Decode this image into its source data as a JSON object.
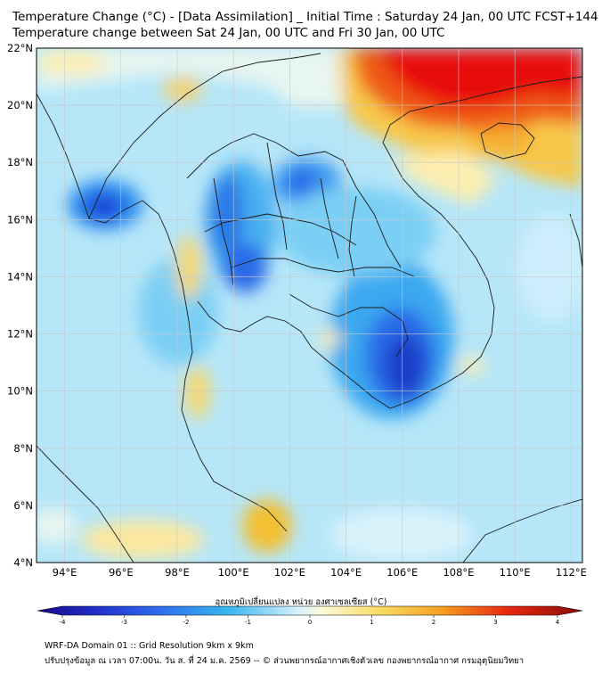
{
  "header": {
    "title_line1": "Temperature Change (°C) - [Data Assimilation] _ Initial Time : Saturday 24 Jan, 00 UTC FCST+144",
    "title_line2": "Temperature change between Sat 24 Jan, 00 UTC and Fri 30 Jan, 00 UTC"
  },
  "map": {
    "lat_labels": [
      "22°N",
      "20°N",
      "18°N",
      "16°N",
      "14°N",
      "12°N",
      "10°N",
      "8°N",
      "6°N",
      "4°N"
    ],
    "lat_values": [
      22,
      20,
      18,
      16,
      14,
      12,
      10,
      8,
      6,
      4
    ],
    "lon_labels": [
      "94°E",
      "96°E",
      "98°E",
      "100°E",
      "102°E",
      "104°E",
      "106°E",
      "108°E",
      "110°E",
      "112°E"
    ],
    "lon_values": [
      94,
      96,
      98,
      100,
      102,
      104,
      106,
      108,
      110,
      112
    ],
    "lat_range": [
      4,
      22
    ],
    "lon_range": [
      93,
      112.4
    ],
    "variable": "Temperature change",
    "unit": "°C"
  },
  "colorbar": {
    "label": "อุณหภูมิเปลี่ยนแปลง หน่วย องศาเซลเซียส (°C)",
    "ticks": [
      "-4",
      "-3",
      "-2",
      "-1",
      "0",
      "1",
      "2",
      "3",
      "4"
    ],
    "tick_values": [
      -4,
      -3,
      -2,
      -1,
      0,
      1,
      2,
      3,
      4
    ],
    "colors": [
      "#1a0a8c",
      "#2030c8",
      "#2f6bf0",
      "#38b6ee",
      "#d8f2ff",
      "#fff5c8",
      "#f6c53a",
      "#f06a10",
      "#e81010",
      "#8c0a0a"
    ]
  },
  "footer": {
    "line1": "WRF-DA Domain 01 :: Grid Resolution 9km x 9km",
    "line2": "ปรับปรุงข้อมูล ณ เวลา 07:00น. วัน ส. ที่ 24 ม.ค. 2569 -- © ส่วนพยากรณ์อากาศเชิงตัวเลข กองพยากรณ์อากาศ กรมอุตุนิยมวิทยา"
  }
}
